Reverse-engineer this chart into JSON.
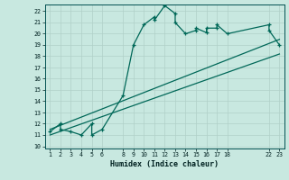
{
  "xlabel": "Humidex (Indice chaleur)",
  "bg_color": "#c8e8e0",
  "grid_color": "#b0d0c8",
  "line_color": "#006858",
  "xlim": [
    0.5,
    23.5
  ],
  "ylim": [
    9.8,
    22.6
  ],
  "xticks": [
    1,
    2,
    3,
    4,
    5,
    6,
    8,
    9,
    10,
    11,
    12,
    13,
    14,
    15,
    16,
    17,
    18,
    22,
    23
  ],
  "yticks": [
    10,
    11,
    12,
    13,
    14,
    15,
    16,
    17,
    18,
    19,
    20,
    21,
    22
  ],
  "line1_x": [
    1,
    2,
    2,
    3,
    4,
    5,
    5,
    6,
    8,
    9,
    10,
    11,
    11,
    12,
    13,
    13,
    14,
    15,
    15,
    16,
    16,
    17,
    17,
    18,
    22,
    22,
    23
  ],
  "line1_y": [
    11.3,
    12,
    11.5,
    11.3,
    11,
    12,
    11,
    11.5,
    14.5,
    19,
    20.8,
    21.5,
    21.2,
    22.5,
    21.8,
    21.0,
    20,
    20.3,
    20.5,
    20.1,
    20.5,
    20.5,
    20.8,
    20,
    20.8,
    20.3,
    19
  ],
  "line2_x": [
    1,
    23
  ],
  "line2_y": [
    11,
    18.2
  ],
  "line3_x": [
    1,
    23
  ],
  "line3_y": [
    11.5,
    19.5
  ],
  "marker": "+"
}
